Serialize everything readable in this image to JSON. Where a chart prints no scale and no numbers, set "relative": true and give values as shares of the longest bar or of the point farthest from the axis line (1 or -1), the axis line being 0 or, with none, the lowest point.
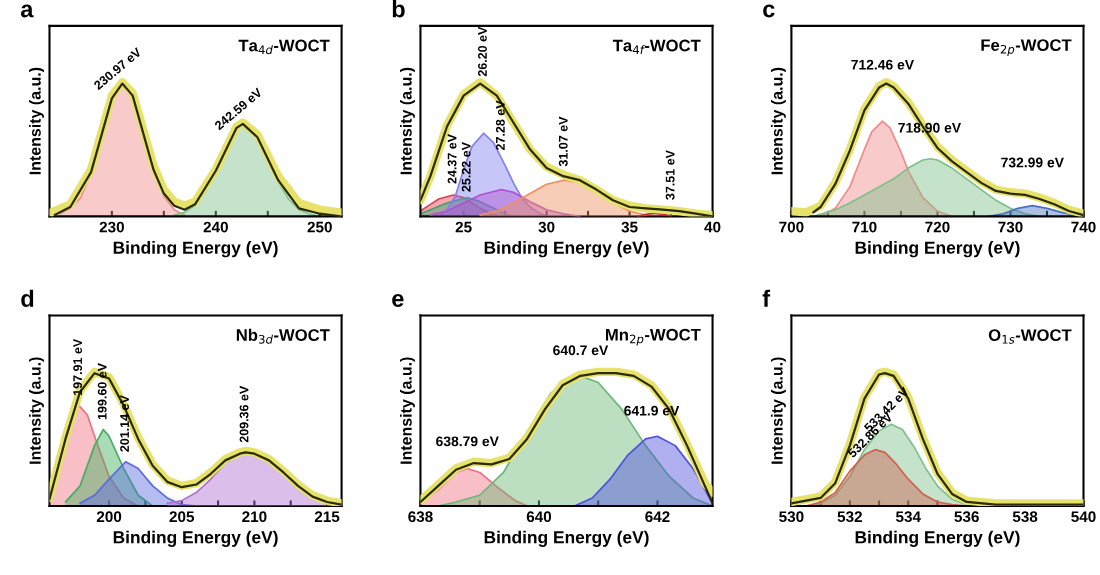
{
  "chart_data": [
    {
      "type": "area",
      "title": "a",
      "xlabel": "Binding Energy (eV)",
      "ylabel": "Intensity (a.u.)",
      "relative": true,
      "xlim": [
        224,
        252.1
      ],
      "xticks": [
        230,
        {
          "value": 235,
          "label": null
        },
        240,
        {
          "value": 245,
          "label": null
        },
        250
      ],
      "annotations": [
        "Ta$_{4d}$-WOCT",
        {
          "text": "230.97 eV",
          "x": 230.97,
          "y": 1.02
        },
        {
          "text": "242.59 eV",
          "x": 242.59,
          "y": 0.72
        }
      ],
      "series": [
        {
          "type": "area",
          "color": "#f08a8a",
          "x": [
            225,
            226,
            227,
            228,
            229,
            230,
            231,
            232,
            233,
            234,
            235,
            236,
            237
          ],
          "values": [
            0.02,
            0.06,
            0.14,
            0.32,
            0.58,
            0.88,
            1.0,
            0.9,
            0.62,
            0.34,
            0.15,
            0.05,
            0.01
          ]
        },
        {
          "type": "area",
          "color": "#7cc08a",
          "x": [
            236,
            237,
            238,
            239,
            240,
            241,
            242,
            242.6,
            243,
            244,
            245,
            246,
            247,
            248,
            249,
            250
          ],
          "values": [
            0.01,
            0.03,
            0.08,
            0.18,
            0.34,
            0.52,
            0.66,
            0.69,
            0.68,
            0.59,
            0.43,
            0.26,
            0.13,
            0.05,
            0.02,
            0.0
          ]
        },
        {
          "type": "line",
          "color": "#e6e26a",
          "x": [
            224.2,
            226,
            228,
            230,
            231,
            232,
            234,
            235,
            236,
            237,
            238,
            240,
            242,
            242.6,
            244,
            246,
            248,
            250,
            252
          ],
          "values": [
            0.03,
            0.09,
            0.35,
            0.9,
            1.0,
            0.92,
            0.38,
            0.2,
            0.11,
            0.08,
            0.11,
            0.35,
            0.67,
            0.7,
            0.61,
            0.3,
            0.1,
            0.05,
            0.03
          ]
        },
        {
          "type": "line",
          "color": "#2b2b0a",
          "x": [
            224.5,
            226,
            228,
            230,
            231,
            232,
            234,
            235,
            236,
            237,
            238,
            240,
            242,
            242.6,
            244,
            246,
            248,
            250,
            252
          ],
          "values": [
            0.01,
            0.07,
            0.33,
            0.88,
            0.99,
            0.9,
            0.35,
            0.17,
            0.08,
            0.05,
            0.09,
            0.34,
            0.66,
            0.69,
            0.59,
            0.27,
            0.06,
            0.02,
            0.0
          ]
        }
      ]
    },
    {
      "type": "area",
      "title": "b",
      "xlabel": "Binding Energy (eV)",
      "ylabel": "Intensity (a.u.)",
      "relative": true,
      "xlim": [
        22.4,
        40
      ],
      "xticks": [
        25,
        {
          "value": 27.5,
          "label": null
        },
        30,
        {
          "value": 32.5,
          "label": null
        },
        35,
        {
          "value": 37.5,
          "label": null
        },
        40
      ],
      "annotations": [
        "Ta$_{4f}$-WOCT",
        {
          "text": "24.37 eV",
          "x": 24.37,
          "y": 0.2
        },
        {
          "text": "25.22 eV",
          "x": 25.22,
          "y": 0.14
        },
        {
          "text": "26.20 eV",
          "x": 26.2,
          "y": 1.0
        },
        {
          "text": "27.28 eV",
          "x": 27.28,
          "y": 0.45
        },
        {
          "text": "31.07 eV",
          "x": 31.07,
          "y": 0.33
        },
        {
          "text": "37.51 eV",
          "x": 37.51,
          "y": 0.08
        }
      ],
      "series": [
        {
          "type": "area",
          "color": "#e04050",
          "x": [
            22.4,
            23,
            23.5,
            24.37,
            25,
            25.5,
            26,
            26.5,
            27
          ],
          "values": [
            0.04,
            0.09,
            0.13,
            0.16,
            0.14,
            0.1,
            0.06,
            0.03,
            0.01
          ]
        },
        {
          "type": "area",
          "color": "#40a070",
          "x": [
            22.4,
            23,
            24,
            25.22,
            26,
            27,
            27.5,
            28
          ],
          "values": [
            0.02,
            0.05,
            0.1,
            0.14,
            0.11,
            0.05,
            0.02,
            0.0
          ]
        },
        {
          "type": "area",
          "color": "#8080f0",
          "x": [
            23.5,
            24,
            24.5,
            25,
            25.5,
            26.2,
            26.8,
            27.5,
            28,
            28.5,
            29,
            29.5,
            30
          ],
          "values": [
            0.0,
            0.05,
            0.15,
            0.35,
            0.52,
            0.62,
            0.55,
            0.38,
            0.25,
            0.14,
            0.07,
            0.03,
            0.0
          ]
        },
        {
          "type": "area",
          "color": "#b050d0",
          "x": [
            23,
            24,
            25,
            26,
            27.28,
            28,
            29,
            30,
            31,
            32
          ],
          "values": [
            0.01,
            0.04,
            0.1,
            0.16,
            0.2,
            0.18,
            0.11,
            0.05,
            0.02,
            0.0
          ]
        },
        {
          "type": "area",
          "color": "#f09060",
          "x": [
            26,
            27,
            28,
            29,
            30,
            31.07,
            32,
            33,
            34,
            35,
            36
          ],
          "values": [
            0.01,
            0.04,
            0.1,
            0.17,
            0.24,
            0.27,
            0.25,
            0.18,
            0.1,
            0.04,
            0.01
          ]
        },
        {
          "type": "area",
          "color": "#c03030",
          "x": [
            35.5,
            36,
            36.5,
            37,
            37.5
          ],
          "values": [
            0.0,
            0.015,
            0.025,
            0.015,
            0.005
          ]
        },
        {
          "type": "line",
          "color": "#e6e26a",
          "x": [
            22.4,
            23,
            24,
            25,
            26,
            27,
            28,
            29,
            30,
            31,
            32,
            33,
            34,
            35,
            36,
            37,
            38,
            39,
            40
          ],
          "values": [
            0.12,
            0.3,
            0.68,
            0.91,
            1.0,
            0.9,
            0.7,
            0.5,
            0.37,
            0.31,
            0.27,
            0.2,
            0.12,
            0.08,
            0.06,
            0.05,
            0.04,
            0.02,
            0.01
          ]
        },
        {
          "type": "line",
          "color": "#2b2b0a",
          "x": [
            22.4,
            23,
            24,
            25,
            26,
            27,
            28,
            29,
            30,
            31,
            32,
            33,
            34,
            35,
            36,
            37,
            38,
            39,
            40
          ],
          "values": [
            0.12,
            0.3,
            0.67,
            0.9,
            0.99,
            0.9,
            0.7,
            0.5,
            0.36,
            0.3,
            0.27,
            0.2,
            0.12,
            0.07,
            0.06,
            0.05,
            0.04,
            0.02,
            0.0
          ]
        }
      ]
    },
    {
      "type": "area",
      "title": "c",
      "xlabel": "Binding Energy (eV)",
      "ylabel": "Intensity (a.u.)",
      "relative": true,
      "xlim": [
        700,
        740
      ],
      "xticks": [
        700,
        {
          "value": 705,
          "label": null
        },
        710,
        {
          "value": 715,
          "label": null
        },
        720,
        {
          "value": 725,
          "label": null
        },
        730,
        {
          "value": 735,
          "label": null
        },
        740
      ],
      "annotations": [
        "Fe$_{2p}$-WOCT",
        {
          "text": "712.46 eV",
          "x": 712.46,
          "y": 0.97
        },
        {
          "text": "718.90 eV",
          "x": 718.9,
          "y": 0.5
        },
        {
          "text": "732.99 eV",
          "x": 732.99,
          "y": 0.2
        }
      ],
      "series": [
        {
          "type": "area",
          "color": "#f08a8a",
          "x": [
            704,
            706,
            708,
            710,
            711,
            712.46,
            713.5,
            715,
            716,
            718,
            720,
            722
          ],
          "values": [
            0.0,
            0.06,
            0.22,
            0.5,
            0.63,
            0.71,
            0.66,
            0.48,
            0.34,
            0.14,
            0.04,
            0.0
          ]
        },
        {
          "type": "area",
          "color": "#7cc08a",
          "x": [
            703,
            706,
            708,
            710,
            712,
            714,
            716,
            718,
            719,
            720,
            722,
            724,
            726,
            728,
            730,
            732,
            734
          ],
          "values": [
            0.0,
            0.05,
            0.1,
            0.16,
            0.22,
            0.28,
            0.36,
            0.42,
            0.43,
            0.42,
            0.36,
            0.28,
            0.2,
            0.12,
            0.06,
            0.02,
            0.0
          ]
        },
        {
          "type": "area",
          "color": "#4a70c0",
          "x": [
            727,
            729,
            731,
            733,
            735,
            737,
            739,
            740
          ],
          "values": [
            0.0,
            0.02,
            0.06,
            0.08,
            0.06,
            0.03,
            0.01,
            0.0
          ]
        },
        {
          "type": "line",
          "color": "#e6e26a",
          "x": [
            700,
            702,
            704,
            706,
            708,
            710,
            712,
            713,
            714,
            716,
            718,
            720,
            722,
            724,
            726,
            728,
            730,
            732,
            734,
            736,
            738,
            740
          ],
          "values": [
            0.04,
            0.03,
            0.08,
            0.25,
            0.5,
            0.8,
            0.97,
            1.0,
            0.97,
            0.85,
            0.68,
            0.52,
            0.42,
            0.34,
            0.26,
            0.2,
            0.18,
            0.17,
            0.14,
            0.1,
            0.05,
            0.02
          ]
        },
        {
          "type": "line",
          "color": "#2b2b0a",
          "x": [
            703,
            704,
            706,
            708,
            710,
            712,
            713,
            714,
            716,
            718,
            720,
            722,
            724,
            726,
            728,
            730,
            732,
            734,
            736,
            738,
            740
          ],
          "values": [
            0.03,
            0.07,
            0.24,
            0.49,
            0.79,
            0.96,
            0.99,
            0.96,
            0.84,
            0.67,
            0.51,
            0.41,
            0.33,
            0.25,
            0.19,
            0.17,
            0.16,
            0.13,
            0.09,
            0.04,
            0.01
          ]
        }
      ]
    },
    {
      "type": "area",
      "title": "d",
      "xlabel": "Binding Energy (eV)",
      "ylabel": "Intensity (a.u.)",
      "relative": true,
      "xlim": [
        195.9,
        216
      ],
      "xticks": [
        200,
        {
          "value": 202.5,
          "label": null
        },
        205,
        {
          "value": 207.5,
          "label": null
        },
        210,
        {
          "value": 212.5,
          "label": null
        },
        215
      ],
      "annotations": [
        "Nb$_{3d}$-WOCT",
        {
          "text": "197.91 eV",
          "x": 197.91,
          "y": 0.78
        },
        {
          "text": "199.60 eV",
          "x": 199.6,
          "y": 0.6
        },
        {
          "text": "201.14 eV",
          "x": 201.14,
          "y": 0.36
        },
        {
          "text": "209.36 eV",
          "x": 209.36,
          "y": 0.43
        }
      ],
      "series": [
        {
          "type": "area",
          "color": "#f07080",
          "x": [
            196,
            197,
            197.91,
            198.5,
            199,
            200,
            201,
            202
          ],
          "values": [
            0.12,
            0.55,
            0.75,
            0.68,
            0.52,
            0.22,
            0.06,
            0.0
          ]
        },
        {
          "type": "area",
          "color": "#40b060",
          "x": [
            197,
            198,
            199,
            199.6,
            200,
            201,
            202,
            203
          ],
          "values": [
            0.03,
            0.15,
            0.45,
            0.57,
            0.52,
            0.28,
            0.08,
            0.0
          ]
        },
        {
          "type": "area",
          "color": "#5a6ae0",
          "x": [
            198,
            199,
            200,
            201.14,
            202,
            203,
            204,
            205,
            206
          ],
          "values": [
            0.02,
            0.08,
            0.2,
            0.33,
            0.28,
            0.15,
            0.06,
            0.01,
            0.0
          ]
        },
        {
          "type": "area",
          "color": "#b070d0",
          "x": [
            204,
            205,
            206,
            207,
            208,
            209.36,
            210,
            211,
            212,
            213,
            214,
            215,
            216
          ],
          "values": [
            0.02,
            0.04,
            0.1,
            0.2,
            0.32,
            0.4,
            0.39,
            0.33,
            0.24,
            0.14,
            0.06,
            0.02,
            0.0
          ]
        },
        {
          "type": "line",
          "color": "#e6e26a",
          "x": [
            195.9,
            197,
            198,
            199,
            200,
            201,
            202,
            203,
            204,
            205,
            206,
            207,
            208,
            209,
            209.4,
            210,
            211,
            212,
            213,
            214,
            215,
            216
          ],
          "values": [
            0.06,
            0.51,
            0.86,
            1.0,
            0.96,
            0.76,
            0.51,
            0.31,
            0.19,
            0.15,
            0.17,
            0.25,
            0.35,
            0.4,
            0.41,
            0.4,
            0.35,
            0.26,
            0.16,
            0.08,
            0.04,
            0.02
          ]
        },
        {
          "type": "line",
          "color": "#2b2b0a",
          "x": [
            195.9,
            197,
            198,
            199,
            200,
            201,
            202,
            203,
            204,
            205,
            206,
            207,
            208,
            209,
            209.4,
            210,
            211,
            212,
            213,
            214,
            215,
            216
          ],
          "values": [
            0.05,
            0.5,
            0.85,
            0.99,
            0.95,
            0.75,
            0.5,
            0.3,
            0.18,
            0.14,
            0.16,
            0.24,
            0.34,
            0.39,
            0.4,
            0.39,
            0.34,
            0.25,
            0.15,
            0.07,
            0.03,
            0.01
          ]
        }
      ]
    },
    {
      "type": "area",
      "title": "e",
      "xlabel": "Binding Energy (eV)",
      "ylabel": "Intensity (a.u.)",
      "relative": true,
      "xlim": [
        638,
        642.93
      ],
      "xticks": [
        638,
        {
          "value": 639,
          "label": null
        },
        640,
        {
          "value": 641,
          "label": null
        },
        642
      ],
      "annotations": [
        "Mn$_{2p}$-WOCT",
        {
          "text": "638.79 eV",
          "x": 638.79,
          "y": 0.28
        },
        {
          "text": "640.7 eV",
          "x": 640.7,
          "y": 1.0
        },
        {
          "text": "641.9 eV",
          "x": 641.9,
          "y": 0.55
        }
      ],
      "series": [
        {
          "type": "area",
          "color": "#f07080",
          "x": [
            638,
            638.3,
            638.6,
            638.79,
            639,
            639.3,
            639.6,
            639.8
          ],
          "values": [
            0.02,
            0.12,
            0.25,
            0.28,
            0.25,
            0.14,
            0.04,
            0.0
          ]
        },
        {
          "type": "area",
          "color": "#6ab878",
          "x": [
            638.3,
            638.6,
            639,
            639.4,
            639.8,
            640.2,
            640.5,
            640.7,
            641,
            641.4,
            641.8,
            642.2,
            642.6,
            642.93
          ],
          "values": [
            0.0,
            0.03,
            0.08,
            0.25,
            0.55,
            0.84,
            0.95,
            0.97,
            0.92,
            0.72,
            0.45,
            0.22,
            0.06,
            0.0
          ]
        },
        {
          "type": "area",
          "color": "#5050e0",
          "x": [
            640.6,
            640.9,
            641.2,
            641.5,
            641.8,
            642,
            642.3,
            642.6,
            642.93
          ],
          "values": [
            0.0,
            0.06,
            0.2,
            0.38,
            0.5,
            0.52,
            0.45,
            0.28,
            0.02
          ]
        },
        {
          "type": "line",
          "color": "#e6e26a",
          "x": [
            638,
            638.3,
            638.6,
            638.9,
            639.2,
            639.5,
            639.8,
            640.1,
            640.4,
            640.7,
            641,
            641.3,
            641.6,
            641.9,
            642.2,
            642.5,
            642.8,
            642.93
          ],
          "values": [
            0.04,
            0.16,
            0.28,
            0.33,
            0.32,
            0.36,
            0.51,
            0.73,
            0.91,
            0.98,
            1.0,
            1.0,
            0.98,
            0.9,
            0.73,
            0.46,
            0.17,
            0.1
          ]
        },
        {
          "type": "line",
          "color": "#2b2b0a",
          "x": [
            638,
            638.3,
            638.6,
            638.9,
            639.2,
            639.5,
            639.8,
            640.1,
            640.4,
            640.7,
            641,
            641.3,
            641.6,
            641.9,
            642.2,
            642.5,
            642.8,
            642.93
          ],
          "values": [
            0.03,
            0.15,
            0.27,
            0.32,
            0.31,
            0.35,
            0.5,
            0.72,
            0.9,
            0.97,
            0.99,
            0.99,
            0.97,
            0.89,
            0.72,
            0.45,
            0.15,
            0.02
          ]
        }
      ]
    },
    {
      "type": "area",
      "title": "f",
      "xlabel": "Binding Energy (eV)",
      "ylabel": "Intensity (a.u.)",
      "relative": true,
      "xlim": [
        530,
        540
      ],
      "xticks": [
        530,
        {
          "value": 531,
          "label": null
        },
        532,
        {
          "value": 533,
          "label": null
        },
        534,
        {
          "value": 535,
          "label": null
        },
        536,
        {
          "value": 537,
          "label": null
        },
        538,
        {
          "value": 539,
          "label": null
        },
        540
      ],
      "annotations": [
        "O$_{1s}$-WOCT",
        {
          "text": "532.86 eV",
          "x": 532.86,
          "y": 0.45
        },
        {
          "text": "533.42 eV",
          "x": 533.42,
          "y": 0.64
        }
      ],
      "series": [
        {
          "type": "area",
          "color": "#7cc08a",
          "x": [
            530.5,
            531,
            531.5,
            532,
            532.5,
            533,
            533.42,
            533.8,
            534.2,
            534.6,
            535,
            535.5,
            536,
            536.5
          ],
          "values": [
            0.0,
            0.02,
            0.08,
            0.22,
            0.42,
            0.56,
            0.61,
            0.57,
            0.44,
            0.28,
            0.15,
            0.05,
            0.01,
            0.0
          ]
        },
        {
          "type": "area",
          "color": "#d06050",
          "x": [
            530.5,
            531,
            531.5,
            532,
            532.5,
            532.86,
            533.2,
            533.6,
            534,
            534.5,
            535,
            535.5,
            536
          ],
          "values": [
            0.0,
            0.03,
            0.1,
            0.26,
            0.38,
            0.42,
            0.4,
            0.31,
            0.2,
            0.09,
            0.03,
            0.01,
            0.0
          ]
        },
        {
          "type": "line",
          "color": "#e6e26a",
          "x": [
            530,
            531,
            531.5,
            532,
            532.5,
            533,
            533.2,
            533.5,
            534,
            534.5,
            535,
            535.5,
            536,
            537,
            540
          ],
          "values": [
            0.03,
            0.07,
            0.18,
            0.46,
            0.81,
            0.99,
            1.0,
            0.98,
            0.81,
            0.51,
            0.25,
            0.1,
            0.04,
            0.02,
            0.02
          ]
        },
        {
          "type": "line",
          "color": "#2b2b0a",
          "x": [
            530,
            531,
            531.5,
            532,
            532.5,
            533,
            533.2,
            533.5,
            534,
            534.5,
            535,
            535.5,
            536,
            537,
            540
          ],
          "values": [
            0.02,
            0.06,
            0.17,
            0.45,
            0.8,
            0.98,
            0.99,
            0.97,
            0.8,
            0.5,
            0.24,
            0.09,
            0.03,
            0.01,
            0.01
          ]
        }
      ]
    }
  ]
}
